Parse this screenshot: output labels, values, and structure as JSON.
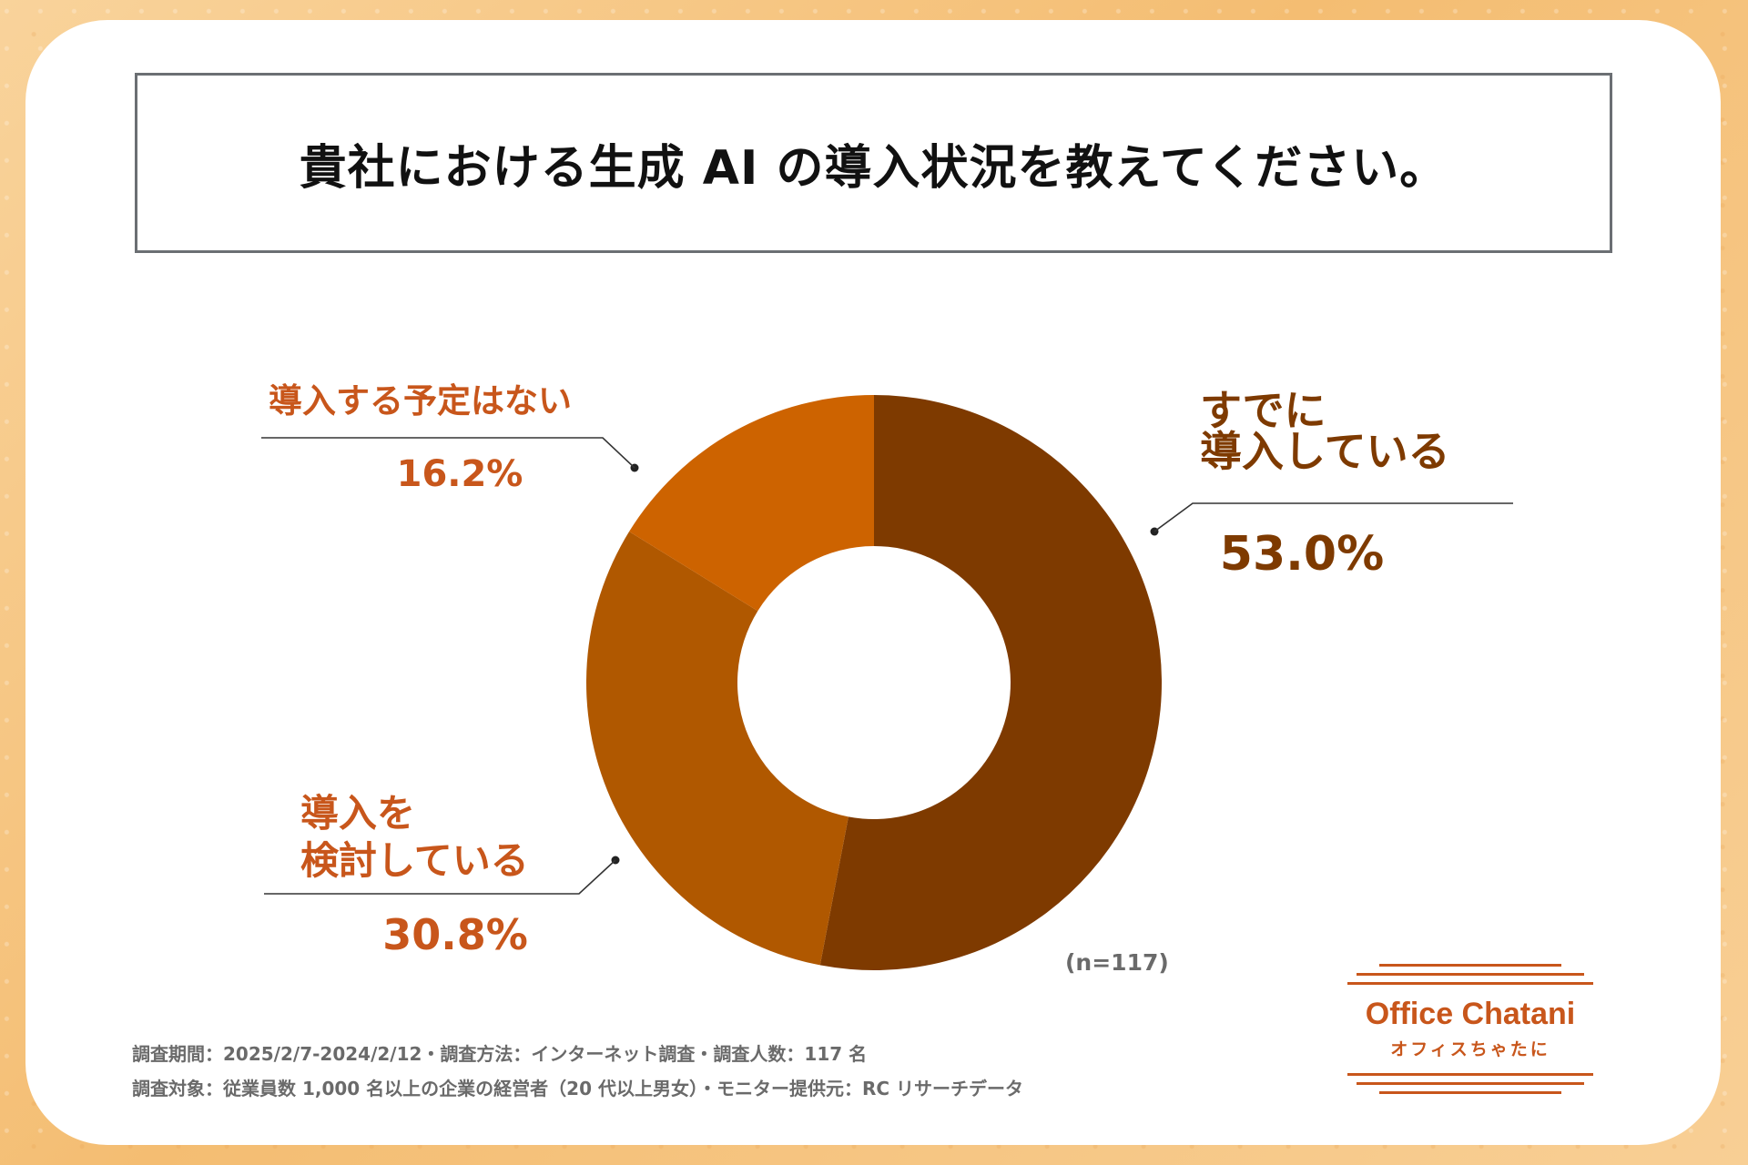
{
  "title": "貴社における生成 AI の導入状況を教えてください。",
  "n_label": "(n=117)",
  "notes": [
    "調査期間：2025/2/7-2024/2/12・調査方法：インターネット調査・調査人数：117 名",
    "調査対象：従業員数 1,000 名以上の企業の経営者（20 代以上男女）・モニター提供元：RC リサーチデータ"
  ],
  "logo": {
    "main": "Office Chatani",
    "sub": "オフィスちゃたに"
  },
  "colors": {
    "accent": "#c8561b"
  },
  "chart_data": {
    "type": "pie",
    "donut": true,
    "unit": "%",
    "slices": [
      {
        "label_lines": [
          "すでに",
          "導入している"
        ],
        "value": 53.0,
        "value_label": "53.0%",
        "color": "#7e3a00"
      },
      {
        "label_lines": [
          "導入を",
          "検討している"
        ],
        "value": 30.8,
        "value_label": "30.8%",
        "color": "#b05800"
      },
      {
        "label_lines": [
          "導入する予定はない"
        ],
        "value": 16.2,
        "value_label": "16.2%",
        "color": "#cd6300"
      }
    ]
  }
}
